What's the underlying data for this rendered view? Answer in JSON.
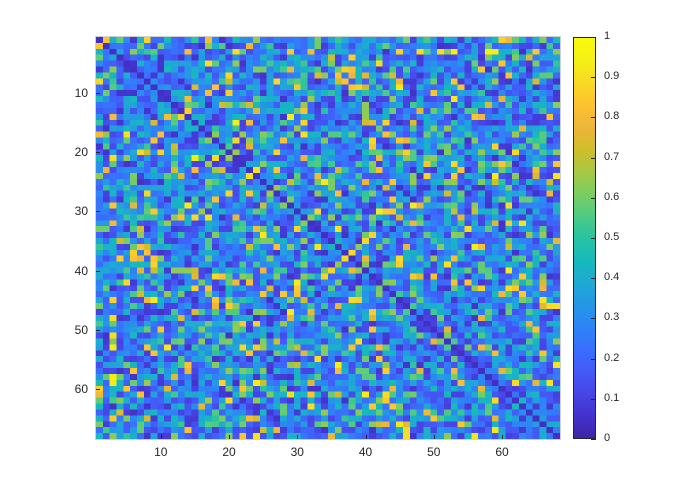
{
  "chart_data": {
    "type": "heatmap",
    "title": "",
    "xlabel": "",
    "ylabel": "",
    "size": [
      68,
      68
    ],
    "colormap": "parula",
    "clim": [
      0,
      1
    ],
    "x_ticks": [
      10,
      20,
      30,
      40,
      50,
      60
    ],
    "y_ticks": [
      10,
      20,
      30,
      40,
      50,
      60
    ],
    "colorbar_ticks": [
      0,
      0.1,
      0.2,
      0.3,
      0.4,
      0.5,
      0.6,
      0.7,
      0.8,
      0.9,
      1
    ],
    "colorbar_labels": [
      "0",
      "0.1",
      "0.2",
      "0.3",
      "0.4",
      "0.5",
      "0.6",
      "0.7",
      "0.8",
      "0.9",
      "1"
    ],
    "x_tick_labels": [
      "10",
      "20",
      "30",
      "40",
      "50",
      "60"
    ],
    "y_tick_labels": [
      "10",
      "20",
      "30",
      "40",
      "50",
      "60"
    ],
    "grid": false,
    "diagonal": "low values (~0.05) along main diagonal",
    "value_distribution": "mostly 0.1-0.45 with sparse cells 0.6-0.9; approximately symmetric",
    "matrix_encoding": "symmetric matrix, values in [0,1], generated by seed",
    "seed": 12345
  },
  "colors": {
    "parula": [
      "#3e26a8",
      "#4433cd",
      "#4746e7",
      "#435bf8",
      "#3970fe",
      "#2d85f6",
      "#2498e5",
      "#1eaad3",
      "#17b9bd",
      "#28c3a3",
      "#4ecb85",
      "#7ccd62",
      "#a9c843",
      "#cfbe2c",
      "#eeb53a",
      "#fdc230",
      "#f8d925",
      "#f5ef16",
      "#f9fb0e"
    ]
  }
}
